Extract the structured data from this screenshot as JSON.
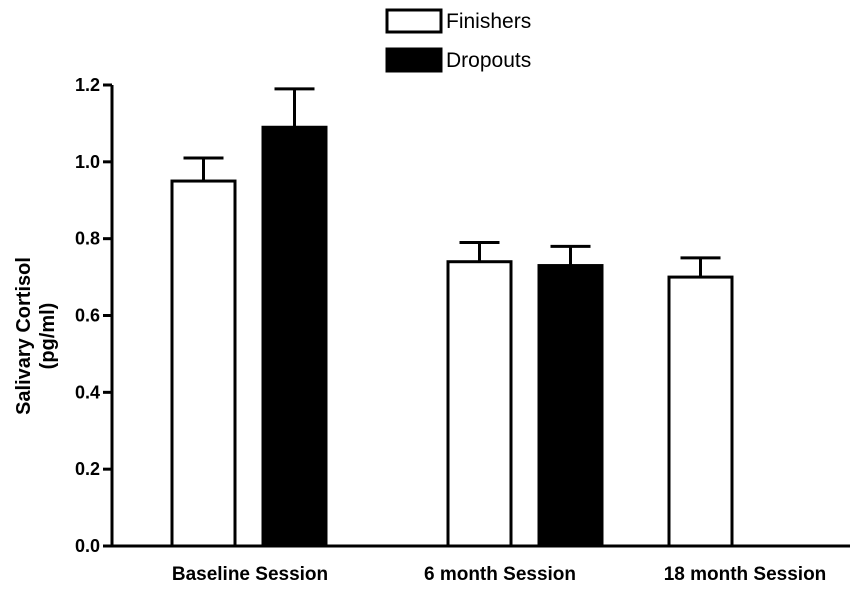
{
  "chart_data": {
    "type": "bar",
    "title": "",
    "xlabel": "",
    "ylabel": [
      "Salivary  Cortisol",
      "(pg/ml)"
    ],
    "ylim": [
      0,
      1.2
    ],
    "yticks": [
      "0.0",
      "0.2",
      "0.4",
      "0.6",
      "0.8",
      "1.0",
      "1.2"
    ],
    "grid": false,
    "legend_position": "top-center",
    "categories": [
      "Baseline Session",
      "6 month Session",
      "18 month Session"
    ],
    "series": [
      {
        "name": "Finishers",
        "fill": "#ffffff",
        "values": [
          0.95,
          0.74,
          0.7
        ],
        "errors": [
          0.06,
          0.05,
          0.05
        ]
      },
      {
        "name": "Dropouts",
        "fill": "#000000",
        "values": [
          1.09,
          0.73,
          null
        ],
        "errors": [
          0.1,
          0.05,
          null
        ]
      }
    ]
  }
}
